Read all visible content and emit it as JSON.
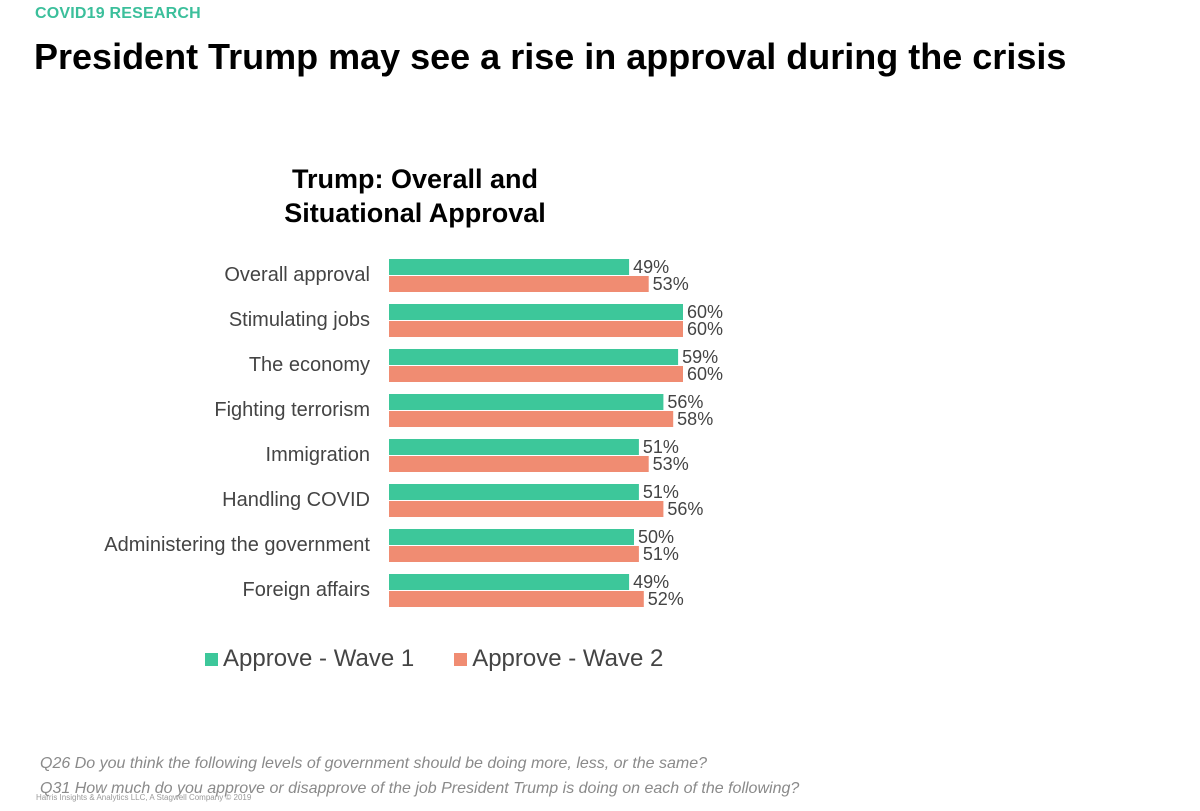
{
  "header": {
    "kicker": "COVID19 RESEARCH",
    "headline": "President Trump may see a rise in approval during the crisis"
  },
  "colors": {
    "accent": "#3bbf9b",
    "wave1": "#3dc79a",
    "wave2": "#f08c72"
  },
  "chart_data": {
    "type": "bar",
    "orientation": "horizontal",
    "title": "Trump: Overall and Situational Approval",
    "title_lines": [
      "Trump: Overall and",
      "Situational Approval"
    ],
    "categories": [
      "Overall approval",
      "Stimulating jobs",
      "The economy",
      "Fighting terrorism",
      "Immigration",
      "Handling COVID",
      "Administering the government",
      "Foreign affairs"
    ],
    "series": [
      {
        "name": "Approve - Wave 1",
        "color": "#3dc79a",
        "values": [
          49,
          60,
          59,
          56,
          51,
          51,
          50,
          49
        ]
      },
      {
        "name": "Approve - Wave 2",
        "color": "#f08c72",
        "values": [
          53,
          60,
          60,
          58,
          53,
          56,
          51,
          52
        ]
      }
    ],
    "value_format": "percent",
    "xlim": [
      0,
      60
    ],
    "grid": false,
    "legend_position": "bottom"
  },
  "footnotes": [
    "Q26 Do you think the following levels of government should be doing more, less, or the same?",
    "Q31 How much do you approve or disapprove of the job President Trump is doing on each of the following?"
  ],
  "copyright": "Harris Insights & Analytics LLC, A Stagwell Company © 2019"
}
